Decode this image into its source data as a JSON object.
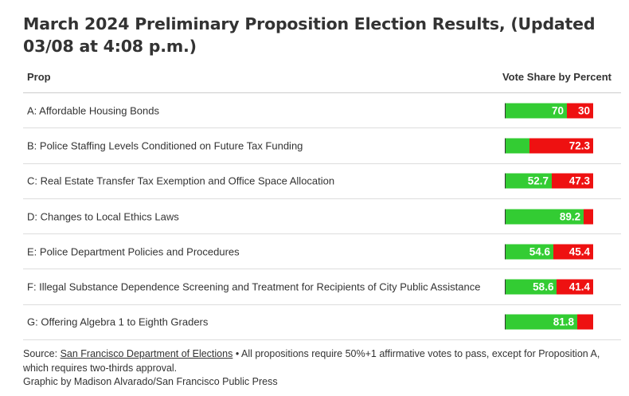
{
  "title": "March 2024 Preliminary Proposition Election Results, (Updated 03/08 at 4:08 p.m.)",
  "header": {
    "prop": "Prop",
    "share": "Vote Share by Percent"
  },
  "colors": {
    "yes": "#33cc33",
    "no": "#ee1111"
  },
  "chart_data": {
    "type": "bar",
    "stacked": true,
    "categories": [
      "A: Affordable Housing Bonds",
      "B: Police Staffing Levels Conditioned on Future Tax Funding",
      "C: Real Estate Transfer Tax Exemption and Office Space Allocation",
      "D: Changes to Local Ethics Laws",
      "E: Police Department Policies and Procedures",
      "F: Illegal Substance Dependence Screening and Treatment for Recipients of City Public Assistance",
      "G: Offering Algebra 1 to Eighth Graders"
    ],
    "series": [
      {
        "values": [
          70,
          27.7,
          52.7,
          89.2,
          54.6,
          58.6,
          81.8
        ],
        "color": "#33cc33"
      },
      {
        "values": [
          30,
          72.3,
          47.3,
          10.8,
          45.4,
          41.4,
          18.2
        ],
        "color": "#ee1111"
      }
    ],
    "data_labels": [
      [
        "70",
        "30"
      ],
      [
        "",
        "72.3"
      ],
      [
        "52.7",
        "47.3"
      ],
      [
        "89.2",
        ""
      ],
      [
        "54.6",
        "45.4"
      ],
      [
        "58.6",
        "41.4"
      ],
      [
        "81.8",
        ""
      ]
    ],
    "xlim": [
      0,
      100
    ]
  },
  "footer": {
    "source_prefix": "Source: ",
    "source_link": "San Francisco Department of Elections",
    "note": " • All propositions require 50%+1 affirmative votes to pass, except for Proposition A, which requires two-thirds approval.",
    "credit": "Graphic by Madison Alvarado/San Francisco Public Press"
  }
}
